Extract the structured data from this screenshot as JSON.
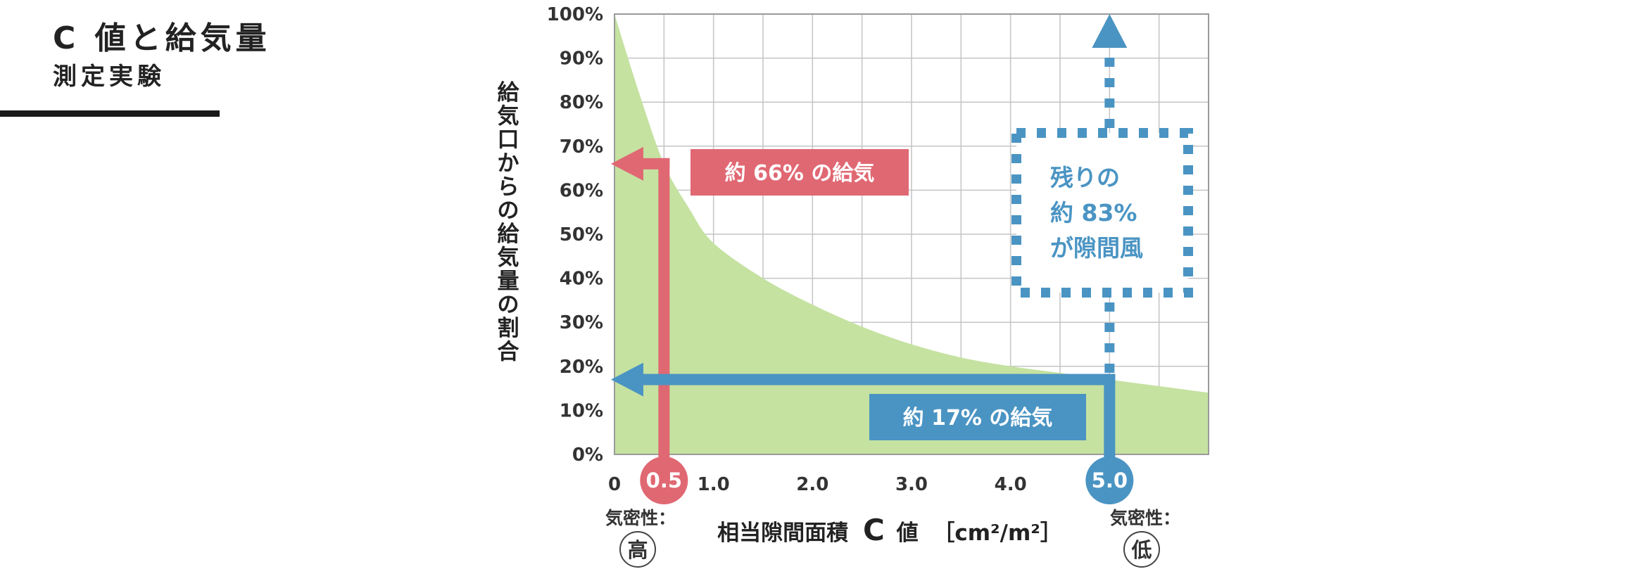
{
  "heading": {
    "line1": "C 値と給気量",
    "line2": "測定実験"
  },
  "chart_data": {
    "type": "area",
    "x_min": 0,
    "x_max": 6.0,
    "ylim": [
      0,
      100
    ],
    "y_ticks": [
      "100%",
      "90%",
      "80%",
      "70%",
      "60%",
      "50%",
      "40%",
      "30%",
      "20%",
      "10%",
      "0%"
    ],
    "x_ticks": [
      {
        "x": 0,
        "label": "0"
      },
      {
        "x": 1.0,
        "label": "1.0"
      },
      {
        "x": 2.0,
        "label": "2.0"
      },
      {
        "x": 3.0,
        "label": "3.0"
      },
      {
        "x": 4.0,
        "label": "4.0"
      }
    ],
    "ylabel": "給気口からの給気量の割合",
    "xlabel": "相当隙間面積",
    "xlabel_c": "C",
    "xlabel_suffix": "値",
    "xlabel_unit": "［cm²/m²］",
    "grid": true,
    "series": [
      {
        "x": [
          0,
          0.25,
          0.5,
          0.75,
          1.0,
          1.5,
          2.0,
          2.5,
          3.0,
          3.5,
          4.0,
          4.5,
          5.0,
          5.5,
          6.0
        ],
        "values": [
          100,
          82,
          66,
          56,
          48,
          40,
          34,
          29,
          25,
          22,
          20,
          18.5,
          17,
          15.5,
          14
        ]
      }
    ],
    "markers": [
      {
        "x": 0.5,
        "label": "0.5",
        "y": 66,
        "callout": "約 66% の給気",
        "density_label": "気密性：",
        "density_value": "高"
      },
      {
        "x": 5.0,
        "label": "5.0",
        "y": 17,
        "callout": "約 17% の給気",
        "density_label": "気密性：",
        "density_value": "低"
      }
    ],
    "leak_box": [
      "残りの",
      "約 83%",
      "が隙間風"
    ]
  },
  "colors": {
    "area": "#c5e2a1",
    "grid": "#c4c4c4",
    "red": "#e06873",
    "blue": "#4a94c3"
  }
}
